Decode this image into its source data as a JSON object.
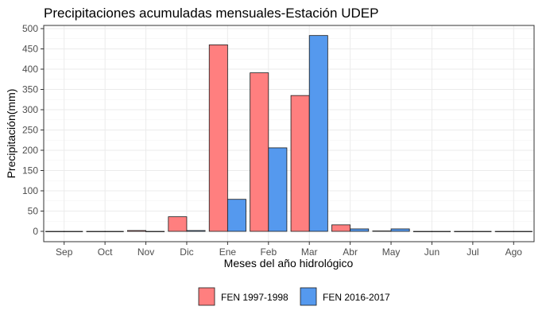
{
  "chart_data": {
    "type": "bar",
    "title": "Precipitaciones acumuladas mensuales-Estación UDEP",
    "xlabel": "Meses del año hidrológico",
    "ylabel": "Precipitación(mm)",
    "categories": [
      "Sep",
      "Oct",
      "Nov",
      "Dic",
      "Ene",
      "Feb",
      "Mar",
      "Abr",
      "May",
      "Jun",
      "Jul",
      "Ago"
    ],
    "series": [
      {
        "name": "FEN 1997-1998",
        "color": "#f8766d",
        "fill": "#ff7f7f",
        "values": [
          0,
          0,
          2,
          36,
          460,
          391,
          335,
          16,
          1,
          0,
          0,
          0
        ]
      },
      {
        "name": "FEN 2016-2017",
        "color": "#619cff",
        "fill": "#5599ee",
        "values": [
          0,
          0,
          0,
          2,
          79,
          206,
          483,
          6,
          6,
          0,
          0,
          0
        ]
      }
    ],
    "ylim": [
      0,
      500
    ],
    "yticks": [
      0,
      50,
      100,
      150,
      200,
      250,
      300,
      350,
      400,
      450,
      500
    ],
    "grid": true,
    "legend_position": "bottom"
  }
}
